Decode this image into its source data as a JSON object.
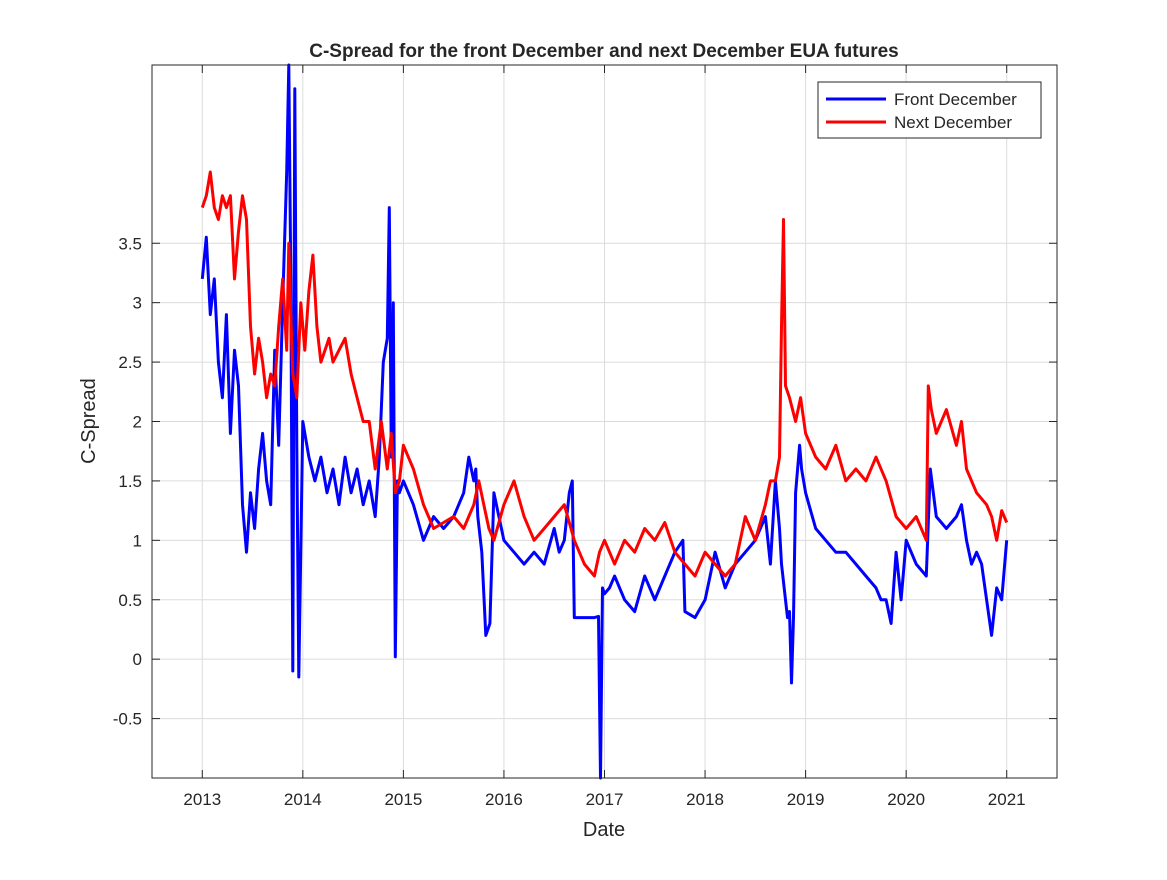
{
  "chart_data": {
    "type": "line",
    "title": "C-Spread for the front December and next December EUA futures",
    "xlabel": "Date",
    "ylabel": "C-Spread",
    "x_is_year_axis": true,
    "xlim": [
      2012.5,
      2021.5
    ],
    "ylim": [
      -1.0,
      5.0
    ],
    "x_ticks": [
      2013,
      2014,
      2015,
      2016,
      2017,
      2018,
      2019,
      2020,
      2021
    ],
    "x_tick_labels": [
      "2013",
      "2014",
      "2015",
      "2016",
      "2017",
      "2018",
      "2019",
      "2020",
      "2021"
    ],
    "y_ticks": [
      -0.5,
      0,
      0.5,
      1,
      1.5,
      2,
      2.5,
      3,
      3.5
    ],
    "y_tick_labels": [
      "-0.5",
      "0",
      "0.5",
      "1",
      "1.5",
      "2",
      "2.5",
      "3",
      "3.5"
    ],
    "grid": true,
    "legend_position": "top-right",
    "series": [
      {
        "name": "Front December",
        "color": "#0000ff",
        "x": [
          2013.0,
          2013.04,
          2013.08,
          2013.12,
          2013.16,
          2013.2,
          2013.24,
          2013.28,
          2013.32,
          2013.36,
          2013.4,
          2013.44,
          2013.48,
          2013.52,
          2013.56,
          2013.6,
          2013.64,
          2013.68,
          2013.72,
          2013.76,
          2013.8,
          2013.84,
          2013.86,
          2013.88,
          2013.9,
          2013.92,
          2013.94,
          2013.96,
          2014.0,
          2014.06,
          2014.12,
          2014.18,
          2014.24,
          2014.3,
          2014.36,
          2014.42,
          2014.48,
          2014.54,
          2014.6,
          2014.66,
          2014.72,
          2014.76,
          2014.8,
          2014.84,
          2014.86,
          2014.88,
          2014.9,
          2014.92,
          2014.94,
          2014.96,
          2015.0,
          2015.1,
          2015.2,
          2015.3,
          2015.4,
          2015.5,
          2015.6,
          2015.65,
          2015.7,
          2015.72,
          2015.74,
          2015.78,
          2015.82,
          2015.86,
          2015.9,
          2015.95,
          2016.0,
          2016.1,
          2016.2,
          2016.3,
          2016.4,
          2016.5,
          2016.55,
          2016.6,
          2016.65,
          2016.68,
          2016.7,
          2016.75,
          2016.8,
          2016.85,
          2016.9,
          2016.94,
          2016.96,
          2016.98,
          2017.0,
          2017.05,
          2017.1,
          2017.2,
          2017.3,
          2017.4,
          2017.5,
          2017.6,
          2017.7,
          2017.78,
          2017.8,
          2017.9,
          2018.0,
          2018.1,
          2018.2,
          2018.3,
          2018.4,
          2018.5,
          2018.6,
          2018.65,
          2018.7,
          2018.74,
          2018.76,
          2018.8,
          2018.82,
          2018.84,
          2018.86,
          2018.88,
          2018.9,
          2018.94,
          2018.96,
          2019.0,
          2019.1,
          2019.2,
          2019.3,
          2019.4,
          2019.5,
          2019.6,
          2019.7,
          2019.75,
          2019.8,
          2019.85,
          2019.9,
          2019.95,
          2020.0,
          2020.1,
          2020.2,
          2020.24,
          2020.3,
          2020.4,
          2020.5,
          2020.55,
          2020.6,
          2020.65,
          2020.7,
          2020.75,
          2020.8,
          2020.85,
          2020.9,
          2020.95,
          2021.0
        ],
        "y": [
          3.2,
          3.55,
          2.9,
          3.2,
          2.5,
          2.2,
          2.9,
          1.9,
          2.6,
          2.3,
          1.3,
          0.9,
          1.4,
          1.1,
          1.6,
          1.9,
          1.5,
          1.3,
          2.6,
          1.8,
          3.0,
          4.1,
          5.0,
          3.2,
          -0.1,
          4.8,
          1.8,
          -0.15,
          2.0,
          1.7,
          1.5,
          1.7,
          1.4,
          1.6,
          1.3,
          1.7,
          1.4,
          1.6,
          1.3,
          1.5,
          1.2,
          1.7,
          2.5,
          2.7,
          3.8,
          1.7,
          3.0,
          0.02,
          1.5,
          1.4,
          1.5,
          1.3,
          1.0,
          1.2,
          1.1,
          1.2,
          1.4,
          1.7,
          1.5,
          1.6,
          1.2,
          0.9,
          0.2,
          0.3,
          1.4,
          1.2,
          1.0,
          0.9,
          0.8,
          0.9,
          0.8,
          1.1,
          0.9,
          1.0,
          1.4,
          1.5,
          0.35,
          0.35,
          0.35,
          0.35,
          0.35,
          0.36,
          -1.0,
          0.6,
          0.55,
          0.6,
          0.7,
          0.5,
          0.4,
          0.7,
          0.5,
          0.7,
          0.9,
          1.0,
          0.4,
          0.35,
          0.5,
          0.9,
          0.6,
          0.8,
          0.9,
          1.0,
          1.2,
          0.8,
          1.5,
          1.1,
          0.8,
          0.5,
          0.35,
          0.4,
          -0.2,
          0.35,
          1.4,
          1.8,
          1.6,
          1.4,
          1.1,
          1.0,
          0.9,
          0.9,
          0.8,
          0.7,
          0.6,
          0.5,
          0.5,
          0.3,
          0.9,
          0.5,
          1.0,
          0.8,
          0.7,
          1.6,
          1.2,
          1.1,
          1.2,
          1.3,
          1.0,
          0.8,
          0.9,
          0.8,
          0.5,
          0.2,
          0.6,
          0.5,
          1.0
        ],
        "y_is_clipped_at_ylim": true
      },
      {
        "name": "Next December",
        "color": "#ff0000",
        "x": [
          2013.0,
          2013.04,
          2013.08,
          2013.12,
          2013.16,
          2013.2,
          2013.24,
          2013.28,
          2013.32,
          2013.36,
          2013.4,
          2013.44,
          2013.48,
          2013.52,
          2013.56,
          2013.6,
          2013.64,
          2013.68,
          2013.72,
          2013.76,
          2013.8,
          2013.84,
          2013.86,
          2013.88,
          2013.9,
          2013.94,
          2013.98,
          2014.02,
          2014.06,
          2014.1,
          2014.14,
          2014.18,
          2014.22,
          2014.26,
          2014.3,
          2014.36,
          2014.42,
          2014.48,
          2014.54,
          2014.6,
          2014.66,
          2014.72,
          2014.78,
          2014.84,
          2014.88,
          2014.92,
          2014.96,
          2015.0,
          2015.1,
          2015.2,
          2015.3,
          2015.4,
          2015.5,
          2015.6,
          2015.7,
          2015.75,
          2015.8,
          2015.85,
          2015.9,
          2016.0,
          2016.1,
          2016.2,
          2016.3,
          2016.4,
          2016.5,
          2016.6,
          2016.7,
          2016.8,
          2016.9,
          2016.95,
          2017.0,
          2017.1,
          2017.2,
          2017.3,
          2017.4,
          2017.5,
          2017.6,
          2017.7,
          2017.8,
          2017.9,
          2018.0,
          2018.1,
          2018.2,
          2018.3,
          2018.4,
          2018.5,
          2018.6,
          2018.65,
          2018.7,
          2018.74,
          2018.76,
          2018.78,
          2018.8,
          2018.84,
          2018.9,
          2018.95,
          2019.0,
          2019.1,
          2019.2,
          2019.3,
          2019.4,
          2019.5,
          2019.6,
          2019.7,
          2019.8,
          2019.9,
          2020.0,
          2020.1,
          2020.2,
          2020.22,
          2020.25,
          2020.3,
          2020.4,
          2020.5,
          2020.55,
          2020.6,
          2020.7,
          2020.8,
          2020.85,
          2020.9,
          2020.95,
          2021.0
        ],
        "y": [
          3.8,
          3.9,
          4.1,
          3.8,
          3.7,
          3.9,
          3.8,
          3.9,
          3.2,
          3.6,
          3.9,
          3.7,
          2.8,
          2.4,
          2.7,
          2.5,
          2.2,
          2.4,
          2.3,
          2.8,
          3.2,
          2.6,
          3.5,
          2.9,
          2.4,
          2.2,
          3.0,
          2.6,
          3.1,
          3.4,
          2.8,
          2.5,
          2.6,
          2.7,
          2.5,
          2.6,
          2.7,
          2.4,
          2.2,
          2.0,
          2.0,
          1.6,
          2.0,
          1.6,
          1.9,
          1.4,
          1.5,
          1.8,
          1.6,
          1.3,
          1.1,
          1.15,
          1.2,
          1.1,
          1.3,
          1.5,
          1.3,
          1.1,
          1.0,
          1.3,
          1.5,
          1.2,
          1.0,
          1.1,
          1.2,
          1.3,
          1.0,
          0.8,
          0.7,
          0.9,
          1.0,
          0.8,
          1.0,
          0.9,
          1.1,
          1.0,
          1.15,
          0.9,
          0.8,
          0.7,
          0.9,
          0.8,
          0.7,
          0.8,
          1.2,
          1.0,
          1.3,
          1.5,
          1.5,
          1.7,
          2.8,
          3.7,
          2.3,
          2.2,
          2.0,
          2.2,
          1.9,
          1.7,
          1.6,
          1.8,
          1.5,
          1.6,
          1.5,
          1.7,
          1.5,
          1.2,
          1.1,
          1.2,
          1.0,
          2.3,
          2.1,
          1.9,
          2.1,
          1.8,
          2.0,
          1.6,
          1.4,
          1.3,
          1.2,
          1.0,
          1.25,
          1.15
        ]
      }
    ]
  }
}
